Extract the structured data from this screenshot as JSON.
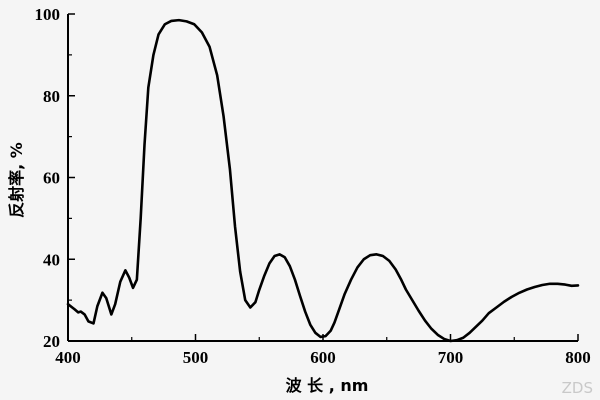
{
  "chart_data": {
    "type": "line",
    "title": "",
    "xlabel": "波 长 , nm",
    "ylabel": "反射率, %",
    "xlim": [
      400,
      800
    ],
    "ylim": [
      20,
      100
    ],
    "x_ticks": [
      400,
      500,
      600,
      700,
      800
    ],
    "y_ticks": [
      20,
      40,
      60,
      80,
      100
    ],
    "grid": false,
    "legend": "none",
    "line_color": "#000000",
    "series": [
      {
        "x": [
          400,
          405,
          408,
          410,
          413,
          416,
          420,
          423,
          427,
          430,
          434,
          437,
          441,
          445,
          448,
          451,
          454,
          457,
          460,
          463,
          467,
          471,
          476,
          481,
          487,
          493,
          499,
          505,
          511,
          517,
          522,
          527,
          531,
          535,
          539,
          543,
          547,
          550,
          554,
          558,
          562,
          566,
          570,
          574,
          578,
          582,
          586,
          590,
          594,
          598,
          602,
          606,
          609,
          613,
          617,
          622,
          627,
          632,
          637,
          642,
          647,
          652,
          657,
          661,
          665,
          670,
          675,
          680,
          685,
          690,
          695,
          700,
          705,
          710,
          715,
          720,
          725,
          730,
          736,
          742,
          748,
          754,
          760,
          766,
          772,
          778,
          784,
          790,
          795,
          800
        ],
        "y": [
          29,
          27.8,
          27,
          27.2,
          26.5,
          24.8,
          24.3,
          28.5,
          31.8,
          30.5,
          26.5,
          29,
          34.5,
          37.3,
          35.5,
          33,
          35,
          50,
          68,
          82,
          90,
          95,
          97.5,
          98.3,
          98.5,
          98.2,
          97.5,
          95.5,
          92,
          85,
          75,
          62,
          48,
          37,
          30,
          28.2,
          29.5,
          32.5,
          36,
          39,
          40.8,
          41.2,
          40.5,
          38.3,
          35,
          31,
          27.2,
          24,
          22,
          21,
          21.2,
          22.5,
          24.5,
          28,
          31.5,
          35,
          38,
          40,
          41,
          41.2,
          40.8,
          39.6,
          37.5,
          35.2,
          32.6,
          30,
          27.4,
          25,
          23,
          21.5,
          20.5,
          20,
          20.2,
          20.8,
          22,
          23.5,
          25,
          26.8,
          28.2,
          29.6,
          30.8,
          31.8,
          32.6,
          33.2,
          33.7,
          34,
          34,
          33.8,
          33.5,
          33.6
        ]
      }
    ]
  },
  "watermark": "ZDS"
}
